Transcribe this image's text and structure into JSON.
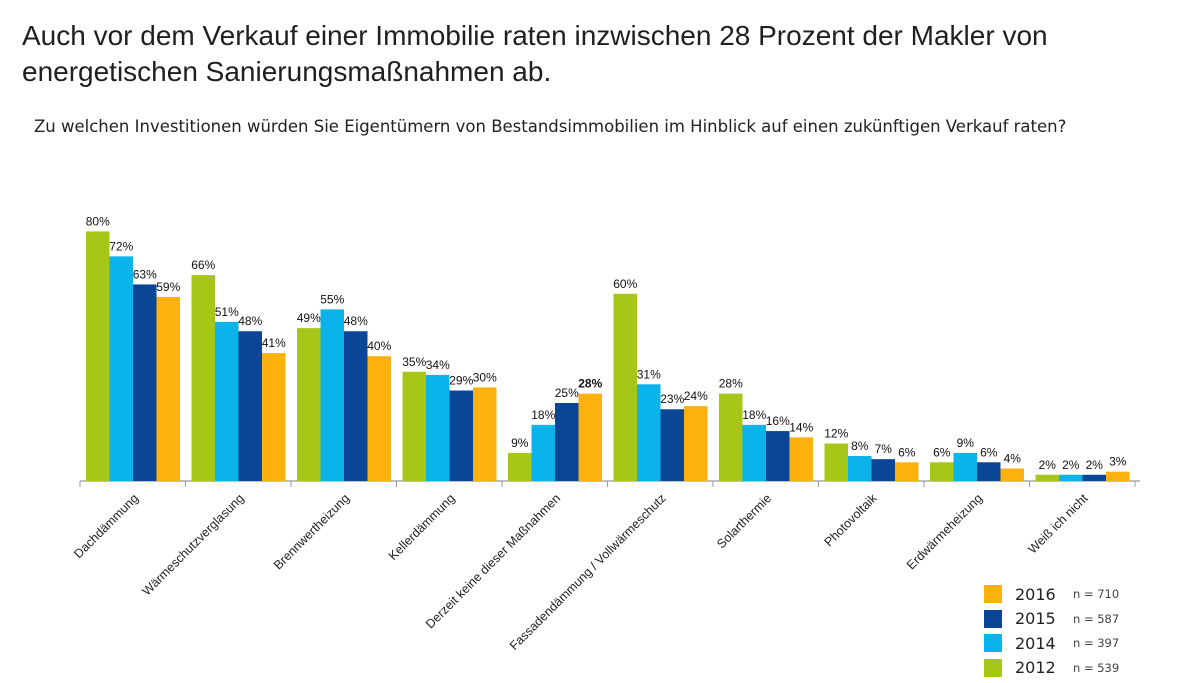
{
  "headline": "Auch vor dem Verkauf einer Immobilie raten inzwischen 28 Prozent der Makler von energetischen Sanierungsmaßnahmen ab.",
  "question": "Zu welchen Investitionen würden Sie Eigentümern von Bestandsimmobilien im Hinblick auf einen zukünftigen Verkauf raten?",
  "colors": {
    "2012": "#a6c717",
    "2014": "#0ab4ea",
    "2015": "#0a4596",
    "2016": "#fdb10f",
    "axis": "#9a9a9a"
  },
  "legend": [
    {
      "year": "2016",
      "n": "n = 710",
      "color": "#fdb10f"
    },
    {
      "year": "2015",
      "n": "n = 587",
      "color": "#0a4596"
    },
    {
      "year": "2014",
      "n": "n = 397",
      "color": "#0ab4ea"
    },
    {
      "year": "2012",
      "n": "n = 539",
      "color": "#a6c717"
    }
  ],
  "chart_data": {
    "type": "bar",
    "title": "",
    "xlabel": "",
    "ylabel": "",
    "ylim": [
      0,
      80
    ],
    "grid": false,
    "legend_position": "bottom-right",
    "categories": [
      "Dachdämmung",
      "Wärmeschutzverglasung",
      "Brennwertheizung",
      "Kellerdämmung",
      "Derzeit keine dieser Maßnahmen",
      "Fassadendämmung / Vollwärmeschutz",
      "Solarthermie",
      "Photovoltaik",
      "Erdwärmeheizung",
      "Weiß ich nicht"
    ],
    "series": [
      {
        "name": "2012",
        "values": [
          80,
          66,
          49,
          35,
          9,
          60,
          28,
          12,
          6,
          2
        ],
        "labels": [
          "80%",
          "66%",
          "49%",
          "35%",
          "9%",
          "60%",
          "28%",
          "12%",
          "6%",
          "2%"
        ]
      },
      {
        "name": "2014",
        "values": [
          72,
          51,
          55,
          34,
          18,
          31,
          18,
          8,
          9,
          2
        ],
        "labels": [
          "72%",
          "51%",
          "55%",
          "34%",
          "18%",
          "31%",
          "18%",
          "8%",
          "9%",
          "2%"
        ]
      },
      {
        "name": "2015",
        "values": [
          63,
          48,
          48,
          29,
          25,
          23,
          16,
          7,
          6,
          2
        ],
        "labels": [
          "63%",
          "48%",
          "48%",
          "29%",
          "25%",
          "23%",
          "16%",
          "7%",
          "6%",
          "2%"
        ]
      },
      {
        "name": "2016",
        "values": [
          59,
          41,
          40,
          30,
          28,
          24,
          14,
          6,
          4,
          3
        ],
        "labels": [
          "59%",
          "41%",
          "40%",
          "30%",
          "28%",
          "24%",
          "14%",
          "6%",
          "4%",
          "3%"
        ]
      }
    ],
    "highlight": {
      "category": "Derzeit keine dieser Maßnahmen",
      "series": "2016",
      "style": "bold"
    }
  }
}
